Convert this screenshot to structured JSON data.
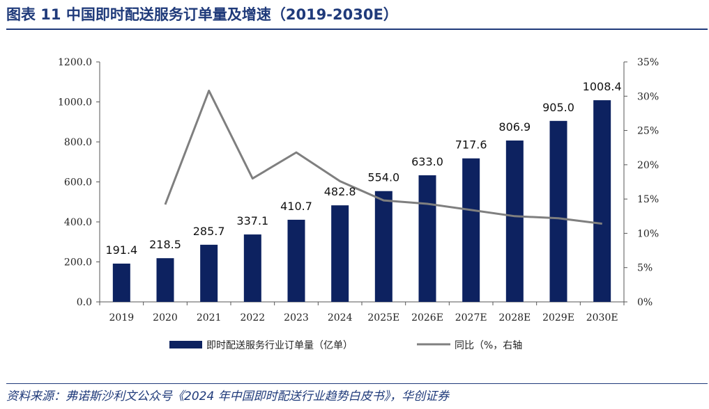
{
  "title": "图表 11  中国即时配送服务订单量及增速（2019-2030E）",
  "source": "资料来源：弗诺斯沙利文公众号《2024 年中国即时配送行业趋势白皮书》，华创证券",
  "colors": {
    "bar": "#0d2260",
    "line": "#7f7f7f",
    "accent": "#1f3a7a"
  },
  "chart_data": {
    "type": "bar",
    "categories": [
      "2019",
      "2020",
      "2021",
      "2022",
      "2023",
      "2024",
      "2025E",
      "2026E",
      "2027E",
      "2028E",
      "2029E",
      "2030E"
    ],
    "series": [
      {
        "name": "即时配送服务行业订单量（亿单）",
        "type": "bar",
        "axis": "left",
        "values": [
          191.4,
          218.5,
          285.7,
          337.1,
          410.7,
          482.8,
          554.0,
          633.0,
          717.6,
          806.9,
          905.0,
          1008.4
        ],
        "labels": [
          "191.4",
          "218.5",
          "285.7",
          "337.1",
          "410.7",
          "482.8",
          "554.0",
          "633.0",
          "717.6",
          "806.9",
          "905.0",
          "1008.4"
        ]
      },
      {
        "name": "同比（%，右轴",
        "type": "line",
        "axis": "right",
        "values": [
          null,
          14.2,
          30.8,
          18.0,
          21.8,
          17.6,
          14.8,
          14.3,
          13.4,
          12.5,
          12.2,
          11.4
        ]
      }
    ],
    "ylim": [
      0,
      1200
    ],
    "y_ticks": [
      "0.0",
      "200.0",
      "400.0",
      "600.0",
      "800.0",
      "1000.0",
      "1200.0"
    ],
    "y2lim": [
      0,
      35
    ],
    "y2_ticks": [
      "0%",
      "5%",
      "10%",
      "15%",
      "20%",
      "25%",
      "30%",
      "35%"
    ],
    "grid": false,
    "legend": "bottom"
  }
}
